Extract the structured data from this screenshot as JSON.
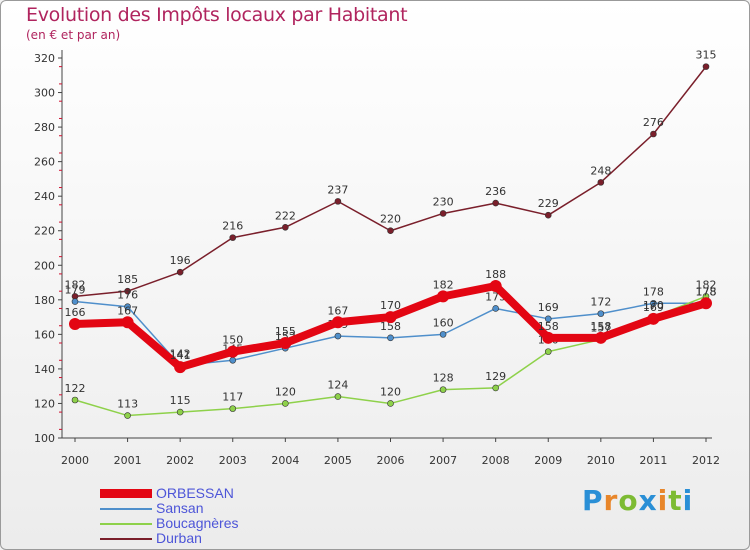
{
  "chart_data": {
    "type": "line",
    "title": "Evolution des Impôts locaux par Habitant",
    "subtitle": "(en € et par an)",
    "categories": [
      "2000",
      "2001",
      "2002",
      "2003",
      "2004",
      "2005",
      "2006",
      "2007",
      "2008",
      "2009",
      "2010",
      "2011",
      "2012"
    ],
    "ylim": [
      100,
      320
    ],
    "yticks": [
      100,
      120,
      140,
      160,
      180,
      200,
      220,
      240,
      260,
      280,
      300,
      320
    ],
    "series": [
      {
        "name": "Durban",
        "color": "#7a1f2b",
        "values": [
          182,
          185,
          196,
          216,
          222,
          237,
          220,
          230,
          236,
          229,
          248,
          276,
          315
        ],
        "labels": [
          "182",
          "185",
          "196",
          "216",
          "222",
          "237",
          "220",
          "230",
          "236",
          "229",
          "248",
          "276",
          "315"
        ]
      },
      {
        "name": "Sansan",
        "color": "#4f8fcb",
        "values": [
          179,
          176,
          142,
          145,
          152,
          159,
          158,
          160,
          175,
          169,
          172,
          178,
          178
        ],
        "labels": [
          "179",
          "176",
          "142",
          "145",
          "152",
          "159",
          "158",
          "160",
          "175",
          "169",
          "172",
          "178",
          "178"
        ]
      },
      {
        "name": "Boucagnères",
        "color": "#8ed14a",
        "values": [
          122,
          113,
          115,
          117,
          120,
          124,
          120,
          128,
          129,
          150,
          157,
          170,
          182
        ],
        "labels": [
          "122",
          "113",
          "115",
          "117",
          "120",
          "124",
          "120",
          "128",
          "129",
          "150",
          "157",
          "170",
          "182"
        ]
      },
      {
        "name": "ORBESSAN",
        "color": "#e30613",
        "values": [
          166,
          167,
          141,
          150,
          155,
          167,
          170,
          182,
          188,
          158,
          158,
          169,
          178
        ],
        "labels": [
          "166",
          "167",
          "141",
          "150",
          "155",
          "167",
          "170",
          "182",
          "188",
          "158",
          "158",
          "169",
          "178"
        ]
      }
    ],
    "legend": [
      "ORBESSAN",
      "Sansan",
      "Boucagnères",
      "Durban"
    ],
    "legend_placement": "bottom-left"
  },
  "logo": {
    "letters": [
      "P",
      "r",
      "o",
      "x",
      "i",
      "t",
      "i"
    ]
  }
}
